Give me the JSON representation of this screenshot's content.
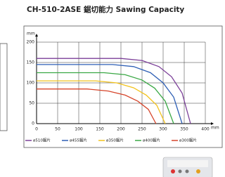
{
  "chart_data": {
    "type": "line",
    "title": "CH-510-2ASE 鋸切能力 Sawing Capacity",
    "y_label": "mm",
    "x_label": "mm",
    "xlim": [
      0,
      400
    ],
    "ylim": [
      0,
      200
    ],
    "xticks": [
      0,
      50,
      100,
      150,
      200,
      250,
      300,
      350,
      400
    ],
    "yticks": [
      0,
      50,
      100,
      150,
      200
    ],
    "grid": true,
    "series": [
      {
        "name": "ø510鋸片",
        "color": "#7b3f98",
        "x": [
          0,
          200,
          250,
          290,
          320,
          345,
          365
        ],
        "values": [
          160,
          160,
          155,
          140,
          115,
          75,
          0
        ]
      },
      {
        "name": "ø455鋸片",
        "color": "#2e5fb5",
        "x": [
          0,
          180,
          230,
          270,
          300,
          325,
          345
        ],
        "values": [
          145,
          145,
          140,
          125,
          100,
          65,
          0
        ]
      },
      {
        "name": "ø350鋸片",
        "color": "#f2c21c",
        "x": [
          0,
          140,
          190,
          230,
          260,
          285,
          305
        ],
        "values": [
          105,
          105,
          100,
          88,
          70,
          45,
          0
        ]
      },
      {
        "name": "ø400鋸片",
        "color": "#3aa845",
        "x": [
          0,
          160,
          210,
          250,
          280,
          305,
          325
        ],
        "values": [
          125,
          125,
          120,
          107,
          87,
          55,
          0
        ]
      },
      {
        "name": "ø300鋸片",
        "color": "#d6452b",
        "x": [
          0,
          120,
          170,
          210,
          240,
          265,
          283
        ],
        "values": [
          85,
          85,
          80,
          70,
          55,
          35,
          0
        ]
      }
    ]
  }
}
